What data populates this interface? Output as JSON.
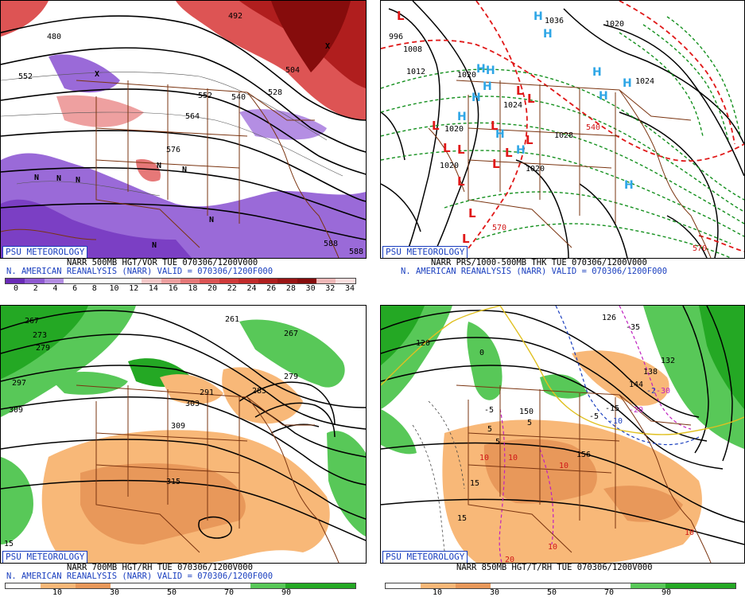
{
  "panels": [
    {
      "id": "vor500",
      "badge": "PSU METEOROLOGY",
      "caption1": "NARR 500MB HGT/VOR TUE 070306/1200V000",
      "caption2": "N. AMERICAN REANALYSIS (NARR) VALID = 070306/1200F000",
      "legend_ticks": [
        "0",
        "2",
        "4",
        "6",
        "8",
        "10",
        "12",
        "14",
        "16",
        "18",
        "20",
        "22",
        "24",
        "26",
        "28",
        "30",
        "32",
        "34"
      ],
      "legend_colors": [
        "#6a2ab8",
        "#8f5ad2",
        "#b48ee3",
        "#ffffff",
        "#ffffff",
        "#ffffff",
        "#ffffff",
        "#f5c9c9",
        "#eea0a0",
        "#e67878",
        "#dd5454",
        "#d03a3a",
        "#c22a2a",
        "#b01e1e",
        "#9a1414",
        "#860c0c",
        "#f0b8b8",
        "#fbe0e0"
      ],
      "contour_labels": [
        {
          "text": "492",
          "color": "#000"
        },
        {
          "text": "552",
          "color": "#000"
        },
        {
          "text": "504",
          "color": "#000"
        },
        {
          "text": "528",
          "color": "#000"
        },
        {
          "text": "552",
          "color": "#000"
        },
        {
          "text": "540",
          "color": "#000"
        },
        {
          "text": "564",
          "color": "#000"
        },
        {
          "text": "576",
          "color": "#000"
        },
        {
          "text": "588",
          "color": "#000"
        },
        {
          "text": "588",
          "color": "#000"
        },
        {
          "text": "480",
          "color": "#000"
        }
      ],
      "markers": [
        "N",
        "N",
        "N",
        "N",
        "N",
        "N",
        "N",
        "X",
        "X"
      ]
    },
    {
      "id": "prs",
      "badge": "PSU METEOROLOGY",
      "caption1": "NARR PRS/1000-500MB THK TUE 070306/1200V000",
      "caption2": "N. AMERICAN REANALYSIS (NARR) VALID = 070306/1200F000",
      "contour_labels": [
        {
          "text": "1036",
          "color": "#000"
        },
        {
          "text": "1020",
          "color": "#000"
        },
        {
          "text": "996",
          "color": "#000"
        },
        {
          "text": "1008",
          "color": "#000"
        },
        {
          "text": "1012",
          "color": "#000"
        },
        {
          "text": "1020",
          "color": "#000"
        },
        {
          "text": "1024",
          "color": "#000"
        },
        {
          "text": "1020",
          "color": "#000"
        },
        {
          "text": "1020",
          "color": "#000"
        },
        {
          "text": "1028",
          "color": "#000"
        },
        {
          "text": "1024",
          "color": "#000"
        },
        {
          "text": "1020",
          "color": "#000"
        },
        {
          "text": "540",
          "color": "#d01818"
        },
        {
          "text": "570",
          "color": "#d01818"
        },
        {
          "text": "570",
          "color": "#d01818"
        }
      ],
      "highs": [
        "H",
        "H",
        "H",
        "H",
        "H",
        "H",
        "H",
        "H",
        "H",
        "H",
        "H",
        "H",
        "H"
      ],
      "lows": [
        "L",
        "L",
        "L",
        "L",
        "L",
        "L",
        "L",
        "L",
        "L",
        "L",
        "L",
        "L",
        "L"
      ]
    },
    {
      "id": "rh700",
      "badge": "PSU METEOROLOGY",
      "caption1": "NARR 700MB HGT/RH TUE 070306/1200V000",
      "caption2": "N. AMERICAN REANALYSIS (NARR) VALID = 070306/1200F000",
      "legend_ticks": [
        "10",
        "30",
        "50",
        "70",
        "90"
      ],
      "contour_labels": [
        {
          "text": "267",
          "color": "#000"
        },
        {
          "text": "273",
          "color": "#000"
        },
        {
          "text": "261",
          "color": "#000"
        },
        {
          "text": "267",
          "color": "#000"
        },
        {
          "text": "279",
          "color": "#000"
        },
        {
          "text": "291",
          "color": "#000"
        },
        {
          "text": "297",
          "color": "#000"
        },
        {
          "text": "303",
          "color": "#000"
        },
        {
          "text": "309",
          "color": "#000"
        },
        {
          "text": "309",
          "color": "#000"
        },
        {
          "text": "315",
          "color": "#000"
        },
        {
          "text": "285",
          "color": "#000"
        },
        {
          "text": "279",
          "color": "#000"
        },
        {
          "text": "15",
          "color": "#000"
        }
      ]
    },
    {
      "id": "t850",
      "badge": "PSU METEOROLOGY",
      "caption1": "NARR 850MB HGT/T/RH TUE 070306/1200V000",
      "legend_ticks": [
        "10",
        "30",
        "50",
        "70",
        "90"
      ],
      "contour_labels": [
        {
          "text": "126",
          "color": "#000"
        },
        {
          "text": "-35",
          "color": "#000"
        },
        {
          "text": "120",
          "color": "#000"
        },
        {
          "text": "132",
          "color": "#000"
        },
        {
          "text": "138",
          "color": "#000"
        },
        {
          "text": "144",
          "color": "#000"
        },
        {
          "text": "150",
          "color": "#000"
        },
        {
          "text": "156",
          "color": "#000"
        },
        {
          "text": "-5",
          "color": "#000"
        },
        {
          "text": "-5",
          "color": "#000"
        },
        {
          "text": "-15",
          "color": "#000"
        },
        {
          "text": "-10",
          "color": "#1a3fbf"
        },
        {
          "text": "-20",
          "color": "#c020c0"
        },
        {
          "text": "-30",
          "color": "#c020c0"
        },
        {
          "text": "-2",
          "color": "#1a3fbf"
        },
        {
          "text": "5",
          "color": "#000"
        },
        {
          "text": "5",
          "color": "#000"
        },
        {
          "text": "5",
          "color": "#000"
        },
        {
          "text": "10",
          "color": "#d01818"
        },
        {
          "text": "10",
          "color": "#d01818"
        },
        {
          "text": "10",
          "color": "#d01818"
        },
        {
          "text": "10",
          "color": "#d01818"
        },
        {
          "text": "10",
          "color": "#d01818"
        },
        {
          "text": "15",
          "color": "#000"
        },
        {
          "text": "15",
          "color": "#000"
        },
        {
          "text": "20",
          "color": "#d01818"
        },
        {
          "text": "0",
          "color": "#000"
        }
      ]
    }
  ],
  "colors": {
    "rh_orange_light": "#f8b878",
    "rh_orange_dark": "#e8985a",
    "rh_green_light": "#58c858",
    "rh_green_dark": "#24a824",
    "border_brown": "#7a3410",
    "badge_blue": "#1a3fbf",
    "high_blue": "#2ea6e6",
    "low_red": "#e01818",
    "thickness_green": "#14901e",
    "thickness_red": "#e01818"
  }
}
